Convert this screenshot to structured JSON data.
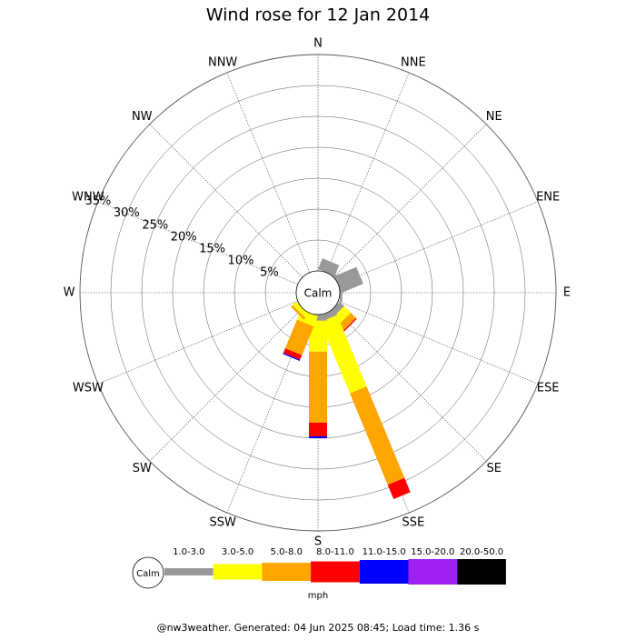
{
  "chart_data": {
    "type": "windrose",
    "title": "Wind rose for 12 Jan 2014",
    "calm_label": "Calm",
    "legend_unit": "mph",
    "footer": "@nw3weather. Generated: 04 Jun 2025 08:45; Load time: 1.36 s",
    "categories": [
      "N",
      "NNE",
      "NE",
      "ENE",
      "E",
      "ESE",
      "SE",
      "SSE",
      "S",
      "SSW",
      "SW",
      "WSW",
      "W",
      "WNW",
      "NW",
      "NNW"
    ],
    "rlim": [
      0,
      35
    ],
    "rticks": [
      {
        "value": 5,
        "label": "5%"
      },
      {
        "value": 10,
        "label": "10%"
      },
      {
        "value": 15,
        "label": "15%"
      },
      {
        "value": 20,
        "label": "20%"
      },
      {
        "value": 25,
        "label": "25%"
      },
      {
        "value": 30,
        "label": "30%"
      },
      {
        "value": 35,
        "label": "35%"
      }
    ],
    "series": [
      {
        "name": "1.0-3.0",
        "color": "#999999",
        "values": [
          0,
          1.9,
          0.6,
          3.8,
          0.4,
          0,
          1,
          1,
          1,
          0,
          0,
          0,
          0,
          0,
          0,
          0
        ]
      },
      {
        "name": "3.0-5.0",
        "color": "#ffff00",
        "values": [
          0,
          0,
          0,
          0,
          0,
          0,
          1.5,
          12.5,
          5,
          1.8,
          0.8,
          0,
          0,
          0,
          0,
          0
        ]
      },
      {
        "name": "5.0-8.0",
        "color": "#ffa500",
        "values": [
          0,
          0,
          0,
          0,
          0,
          0,
          1.2,
          16,
          11.5,
          5,
          0.4,
          0,
          0,
          0,
          0,
          0
        ]
      },
      {
        "name": "8.0-11.0",
        "color": "#ff0000",
        "values": [
          0,
          0,
          0,
          0,
          0,
          0,
          0.2,
          2.5,
          2.2,
          0.8,
          0,
          0,
          0,
          0,
          0,
          0
        ]
      },
      {
        "name": "11.0-15.0",
        "color": "#0000ff",
        "values": [
          0,
          0,
          0,
          0,
          0,
          0,
          0,
          0,
          0.3,
          0.2,
          0,
          0,
          0,
          0,
          0,
          0
        ]
      },
      {
        "name": "15.0-20.0",
        "color": "#a020f0",
        "values": [
          0,
          0,
          0,
          0,
          0,
          0,
          0,
          0,
          0,
          0,
          0,
          0,
          0,
          0,
          0,
          0
        ]
      },
      {
        "name": "20.0-50.0",
        "color": "#000000",
        "values": [
          0,
          0,
          0,
          0,
          0,
          0,
          0,
          0,
          0,
          0,
          0,
          0,
          0,
          0,
          0,
          0
        ]
      }
    ]
  }
}
